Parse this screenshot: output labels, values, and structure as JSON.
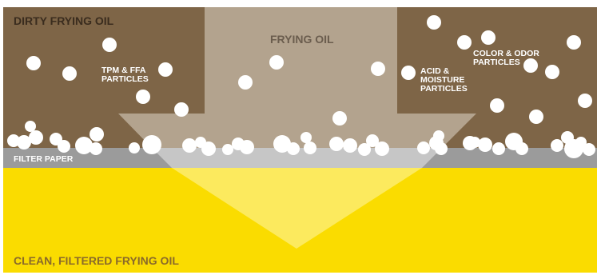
{
  "labels": {
    "dirty_oil": "DIRTY FRYING OIL",
    "frying_oil": "FRYING OIL",
    "filter_paper": "FILTER PAPER",
    "clean_oil": "CLEAN, FILTERED FRYING OIL",
    "tpm_ffa": "TPM & FFA\nPARTICLES",
    "acid_moisture": "ACID &\nMOISTURE\nPARTICLES",
    "color_odor": "COLOR & ODOR\nPARTICLES"
  },
  "colors": {
    "dirty_oil": "#7e6547",
    "arrow_in_dirty": "#b3a38e",
    "filter_paper": "#9b9b9b",
    "arrow_in_filter": "#c6c6c6",
    "clean_oil": "#fadc00",
    "arrow_in_clean": "#fcea5e",
    "particle": "#ffffff",
    "text_dark": "#3a2c1e",
    "text_frying": "#6b5d4e",
    "text_white": "#ffffff",
    "text_clean": "#8a6a2a"
  }
}
